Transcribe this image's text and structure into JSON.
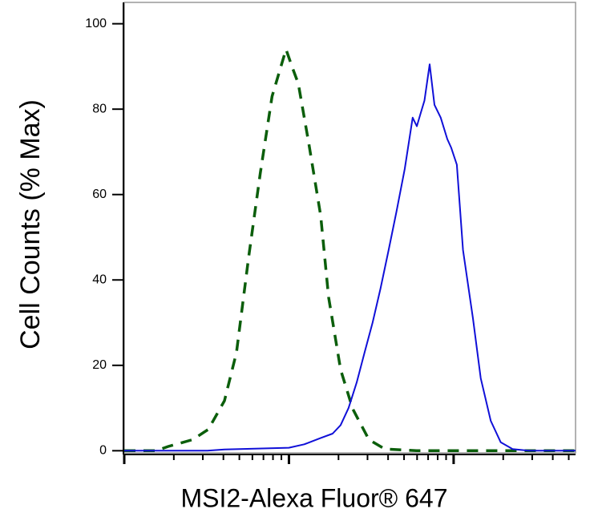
{
  "chart_data": {
    "type": "line",
    "y_label": "Cell Counts (% Max)",
    "x_label": "MSI2-Alexa Fluor® 647",
    "x_log": true,
    "xlim": [
      1,
      550
    ],
    "xticks": [
      1,
      2,
      3,
      4,
      5,
      6,
      7,
      8,
      9,
      10,
      20,
      30,
      40,
      50,
      60,
      70,
      80,
      90,
      100,
      200,
      300,
      400,
      500
    ],
    "xticks_major": [
      1,
      10,
      100
    ],
    "ylim": [
      -0.5,
      105
    ],
    "yticks": [
      0,
      20,
      40,
      60,
      80,
      100
    ],
    "series": [
      {
        "color": "#0b5e0b",
        "dashed": true,
        "x": [
          1,
          1.57,
          1.85,
          2.6,
          3.24,
          4.06,
          4.8,
          5.7,
          6.7,
          7.9,
          9.6,
          10.5,
          11.4,
          13.2,
          15.6,
          17.4,
          20.6,
          24.4,
          30.6,
          38.2,
          59.6,
          146,
          550
        ],
        "values": [
          0,
          0,
          1,
          2.6,
          5,
          11.7,
          23,
          45.5,
          65,
          83,
          94,
          89.7,
          86,
          72,
          55,
          36,
          19,
          9.8,
          2.6,
          0.4,
          0,
          0,
          0
        ]
      },
      {
        "color": "#1010d8",
        "dashed": false,
        "x": [
          1,
          3.2,
          4.06,
          10,
          12.4,
          15.6,
          18.4,
          20.6,
          23,
          25.8,
          28.8,
          32.2,
          36,
          40.3,
          45,
          50.5,
          56.4,
          59.8,
          63,
          66.5,
          71.5,
          76.5,
          83.5,
          91.5,
          96.6,
          104.6,
          114,
          131,
          146,
          168,
          193,
          228,
          285,
          550
        ],
        "values": [
          0,
          0,
          0.3,
          0.7,
          1.5,
          3,
          4,
          6,
          10,
          16,
          23,
          30,
          38,
          47,
          56,
          66,
          78,
          76,
          79,
          82,
          90.5,
          81,
          78,
          73,
          71,
          67,
          47,
          31,
          17,
          7,
          2,
          0.4,
          0,
          0
        ]
      }
    ]
  }
}
